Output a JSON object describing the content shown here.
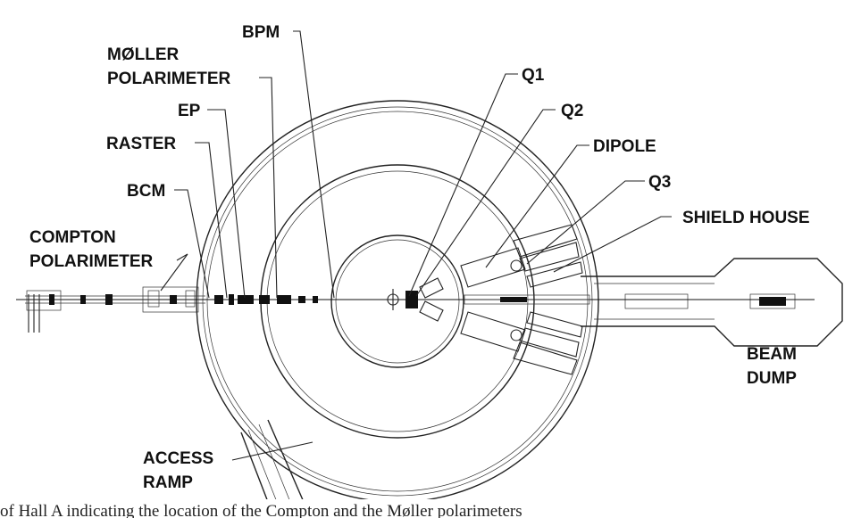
{
  "labels": {
    "bpm": "BPM",
    "moller_line1": "MØLLER",
    "moller_line2": "POLARIMETER",
    "ep": "EP",
    "raster": "RASTER",
    "bcm": "BCM",
    "compton_line1": "COMPTON",
    "compton_line2": "POLARIMETER",
    "q1": "Q1",
    "q2": "Q2",
    "dipole": "DIPOLE",
    "q3": "Q3",
    "shield_house": "SHIELD HOUSE",
    "beam_dump_line1": "BEAM",
    "beam_dump_line2": "DUMP",
    "access_ramp_line1": "ACCESS",
    "access_ramp_line2": "RAMP"
  },
  "caption": "of Hall A indicating the location of the Compton and the Møller polarimeters"
}
